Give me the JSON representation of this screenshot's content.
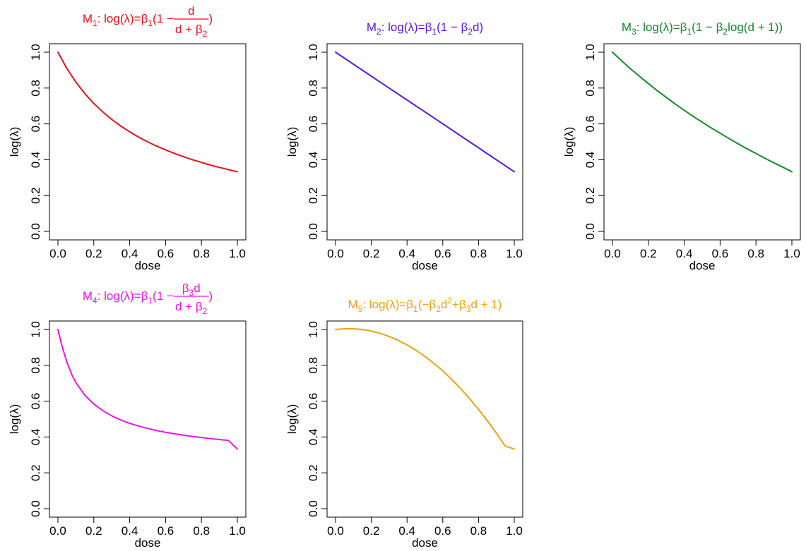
{
  "chart_data": [
    {
      "type": "line",
      "title_parts": [
        "M",
        "1",
        ": log(λ)=β",
        "1",
        "(1 − ",
        "d",
        "d + β",
        "2",
        ")"
      ],
      "title_layout": "fraction",
      "color": "#e8111b",
      "xlabel": "dose",
      "ylabel": "log(λ)",
      "xlim": [
        0,
        1
      ],
      "ylim": [
        0,
        1
      ],
      "xticks": [
        0,
        0.2,
        0.4,
        0.6,
        0.8,
        1
      ],
      "xtick_labels": [
        "0.0",
        "0.2",
        "0.4",
        "0.6",
        "0.8",
        "1.0"
      ],
      "yticks": [
        0,
        0.2,
        0.4,
        0.6,
        0.8,
        1
      ],
      "ytick_labels": [
        "0.0",
        "0.2",
        "0.4",
        "0.6",
        "0.8",
        "1.0"
      ],
      "series": [
        {
          "x": [
            0,
            0.05,
            0.1,
            0.15,
            0.2,
            0.25,
            0.3,
            0.35,
            0.4,
            0.45,
            0.5,
            0.55,
            0.6,
            0.65,
            0.7,
            0.75,
            0.8,
            0.85,
            0.9,
            0.95,
            1
          ],
          "y": [
            1,
            0.909,
            0.833,
            0.769,
            0.714,
            0.667,
            0.625,
            0.588,
            0.556,
            0.526,
            0.5,
            0.476,
            0.455,
            0.435,
            0.417,
            0.4,
            0.385,
            0.37,
            0.357,
            0.345,
            0.333
          ]
        }
      ]
    },
    {
      "type": "line",
      "title_parts": [
        "M",
        "2",
        ": log(λ)=β",
        "1",
        "(1 − β",
        "2",
        "d)"
      ],
      "title_layout": "inline",
      "color": "#5a16e6",
      "xlabel": "dose",
      "ylabel": "log(λ)",
      "xlim": [
        0,
        1
      ],
      "ylim": [
        0,
        1
      ],
      "xticks": [
        0,
        0.2,
        0.4,
        0.6,
        0.8,
        1
      ],
      "xtick_labels": [
        "0.0",
        "0.2",
        "0.4",
        "0.6",
        "0.8",
        "1.0"
      ],
      "yticks": [
        0,
        0.2,
        0.4,
        0.6,
        0.8,
        1
      ],
      "ytick_labels": [
        "0.0",
        "0.2",
        "0.4",
        "0.6",
        "0.8",
        "1.0"
      ],
      "series": [
        {
          "x": [
            0,
            0.25,
            0.5,
            0.75,
            1
          ],
          "y": [
            1,
            0.833,
            0.667,
            0.5,
            0.333
          ]
        }
      ]
    },
    {
      "type": "line",
      "title_parts": [
        "M",
        "3",
        ": log(λ)=β",
        "1",
        "(1 − β",
        "2",
        "log(d + 1))"
      ],
      "title_layout": "inline",
      "color": "#13892a",
      "xlabel": "dose",
      "ylabel": "log(λ)",
      "xlim": [
        0,
        1
      ],
      "ylim": [
        0,
        1
      ],
      "xticks": [
        0,
        0.2,
        0.4,
        0.6,
        0.8,
        1
      ],
      "xtick_labels": [
        "0.0",
        "0.2",
        "0.4",
        "0.6",
        "0.8",
        "1.0"
      ],
      "yticks": [
        0,
        0.2,
        0.4,
        0.6,
        0.8,
        1
      ],
      "ytick_labels": [
        "0.0",
        "0.2",
        "0.4",
        "0.6",
        "0.8",
        "1.0"
      ],
      "series": [
        {
          "x": [
            0,
            0.05,
            0.1,
            0.15,
            0.2,
            0.25,
            0.3,
            0.35,
            0.4,
            0.45,
            0.5,
            0.55,
            0.6,
            0.65,
            0.7,
            0.75,
            0.8,
            0.85,
            0.9,
            0.95,
            1
          ],
          "y": [
            1,
            0.953,
            0.908,
            0.866,
            0.825,
            0.785,
            0.748,
            0.711,
            0.676,
            0.642,
            0.61,
            0.578,
            0.548,
            0.518,
            0.489,
            0.461,
            0.435,
            0.408,
            0.383,
            0.358,
            0.333
          ]
        }
      ]
    },
    {
      "type": "line",
      "title_parts": [
        "M",
        "4",
        ": log(λ)=β",
        "1",
        "(1 − ",
        "β",
        "3",
        "d",
        "d + β",
        "2",
        ")"
      ],
      "title_layout": "fraction2",
      "color": "#ee11ee",
      "xlabel": "dose",
      "ylabel": "log(λ)",
      "xlim": [
        0,
        1
      ],
      "ylim": [
        0,
        1
      ],
      "xticks": [
        0,
        0.2,
        0.4,
        0.6,
        0.8,
        1
      ],
      "xtick_labels": [
        "0.0",
        "0.2",
        "0.4",
        "0.6",
        "0.8",
        "1.0"
      ],
      "yticks": [
        0,
        0.2,
        0.4,
        0.6,
        0.8,
        1
      ],
      "ytick_labels": [
        "0.0",
        "0.2",
        "0.4",
        "0.6",
        "0.8",
        "1.0"
      ],
      "series": [
        {
          "x": [
            0,
            0.02,
            0.05,
            0.08,
            0.1,
            0.15,
            0.2,
            0.25,
            0.3,
            0.35,
            0.4,
            0.45,
            0.5,
            0.55,
            0.6,
            0.65,
            0.7,
            0.75,
            0.8,
            0.85,
            0.9,
            0.95,
            1
          ],
          "y": [
            1,
            0.917,
            0.818,
            0.742,
            0.704,
            0.633,
            0.584,
            0.547,
            0.518,
            0.495,
            0.476,
            0.461,
            0.448,
            0.436,
            0.426,
            0.418,
            0.41,
            0.403,
            0.397,
            0.391,
            0.386,
            0.381,
            0.333
          ]
        }
      ]
    },
    {
      "type": "line",
      "title_parts": [
        "M",
        "5",
        ": log(λ)=β",
        "1",
        "(−β",
        "2",
        "d",
        "2",
        "+β",
        "3",
        "d + 1)"
      ],
      "title_layout": "inline",
      "color": "#f0a010",
      "xlabel": "dose",
      "ylabel": "log(λ)",
      "xlim": [
        0,
        1
      ],
      "ylim": [
        0,
        1
      ],
      "xticks": [
        0,
        0.2,
        0.4,
        0.6,
        0.8,
        1
      ],
      "xtick_labels": [
        "0.0",
        "0.2",
        "0.4",
        "0.6",
        "0.8",
        "1.0"
      ],
      "yticks": [
        0,
        0.2,
        0.4,
        0.6,
        0.8,
        1
      ],
      "ytick_labels": [
        "0.0",
        "0.2",
        "0.4",
        "0.6",
        "0.8",
        "1.0"
      ],
      "series": [
        {
          "x": [
            0,
            0.05,
            0.1,
            0.15,
            0.2,
            0.25,
            0.3,
            0.35,
            0.4,
            0.45,
            0.5,
            0.55,
            0.6,
            0.65,
            0.7,
            0.75,
            0.8,
            0.85,
            0.9,
            0.95,
            1
          ],
          "y": [
            1,
            1.004,
            1.004,
            1.0,
            0.991,
            0.978,
            0.961,
            0.94,
            0.914,
            0.884,
            0.85,
            0.811,
            0.769,
            0.721,
            0.67,
            0.614,
            0.554,
            0.49,
            0.421,
            0.349,
            0.333
          ]
        }
      ]
    }
  ]
}
